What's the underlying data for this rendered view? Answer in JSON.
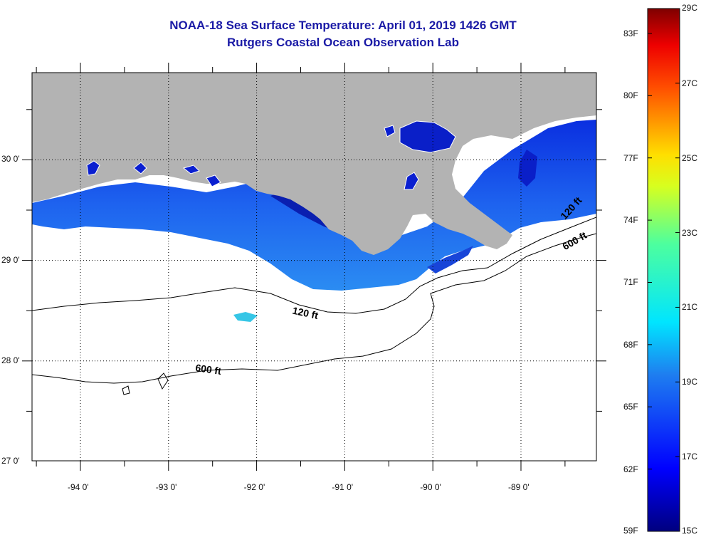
{
  "header": {
    "title": "NOAA-18 Sea Surface Temperature:  April 01, 2019 1426 GMT",
    "subtitle": "Rutgers Coastal Ocean Observation Lab"
  },
  "map": {
    "lon_labels": [
      {
        "value": -94,
        "text": "-94 0'"
      },
      {
        "value": -93,
        "text": "-93 0'"
      },
      {
        "value": -92,
        "text": "-92 0'"
      },
      {
        "value": -91,
        "text": "-91 0'"
      },
      {
        "value": -90,
        "text": "-90 0'"
      },
      {
        "value": -89,
        "text": "-89 0'"
      }
    ],
    "lat_labels": [
      {
        "value": 30,
        "text": "30 0'"
      },
      {
        "value": 29,
        "text": "29 0'"
      },
      {
        "value": 28,
        "text": "28 0'"
      },
      {
        "value": 27,
        "text": "27 0'"
      }
    ],
    "contour_labels": [
      {
        "text": "120 ft",
        "lon": -91.6,
        "lat": 28.47
      },
      {
        "text": "120 ft",
        "lon": -88.5,
        "lat": 29.4
      },
      {
        "text": "600 ft",
        "lon": -92.7,
        "lat": 27.9
      },
      {
        "text": "600 ft",
        "lon": -88.5,
        "lat": 29.1
      }
    ],
    "colors": {
      "land": "#b3b3b3",
      "water_nodata": "#ffffff"
    }
  },
  "colorbar": {
    "fahrenheit": [
      "83F",
      "80F",
      "77F",
      "74F",
      "71F",
      "68F",
      "65F",
      "62F",
      "59F"
    ],
    "celsius": [
      "29C",
      "27C",
      "25C",
      "23C",
      "21C",
      "19C",
      "17C",
      "15C"
    ],
    "range_c": [
      15,
      29
    ]
  }
}
